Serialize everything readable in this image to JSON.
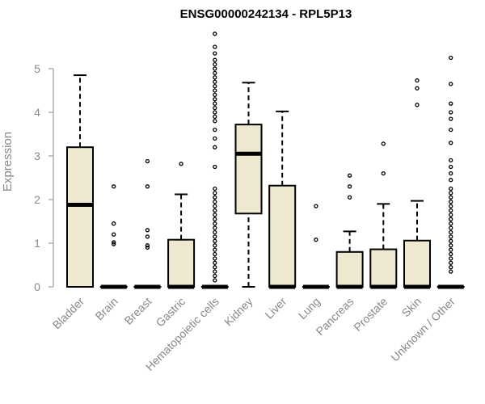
{
  "chart_data": {
    "type": "boxplot",
    "title": "ENSG00000242134 - RPL5P13",
    "ylabel": "Expression",
    "xlabel": "",
    "ylim": [
      0,
      5.8
    ],
    "yticks": [
      0,
      1,
      2,
      3,
      4,
      5
    ],
    "grid": false,
    "box_fill": "#EEE8D0",
    "categories": [
      "Bladder",
      "Brain",
      "Breast",
      "Gastric",
      "Hematopoietic cells",
      "Kidney",
      "Liver",
      "Lung",
      "Pancreas",
      "Prostate",
      "Skin",
      "Unknown / Other"
    ],
    "boxes": [
      {
        "category": "Bladder",
        "whisker_low": 0,
        "q1": 0,
        "median": 1.88,
        "q3": 3.2,
        "whisker_high": 4.85,
        "outliers": []
      },
      {
        "category": "Brain",
        "whisker_low": 0,
        "q1": 0,
        "median": 0,
        "q3": 0,
        "whisker_high": 0,
        "outliers": [
          0.98,
          1.02,
          1.2,
          1.45,
          2.3
        ]
      },
      {
        "category": "Breast",
        "whisker_low": 0,
        "q1": 0,
        "median": 0,
        "q3": 0,
        "whisker_high": 0,
        "outliers": [
          0.9,
          0.95,
          1.15,
          1.3,
          2.3,
          2.88
        ]
      },
      {
        "category": "Gastric",
        "whisker_low": 0,
        "q1": 0,
        "median": 0,
        "q3": 1.08,
        "whisker_high": 2.12,
        "outliers": [
          2.82
        ]
      },
      {
        "category": "Hematopoietic cells",
        "whisker_low": 0,
        "q1": 0,
        "median": 0,
        "q3": 0,
        "whisker_high": 0,
        "outliers": [
          0.15,
          0.25,
          0.35,
          0.45,
          0.55,
          0.65,
          0.75,
          0.85,
          0.95,
          1.05,
          1.15,
          1.25,
          1.35,
          1.45,
          1.55,
          1.65,
          1.75,
          1.85,
          1.95,
          2.05,
          2.15,
          2.25,
          2.75,
          3.2,
          3.4,
          3.6,
          3.8,
          3.9,
          4.0,
          4.1,
          4.2,
          4.3,
          4.4,
          4.5,
          4.6,
          4.7,
          4.8,
          4.9,
          5.0,
          5.1,
          5.2,
          5.35,
          5.5,
          5.8
        ]
      },
      {
        "category": "Kidney",
        "whisker_low": 0,
        "q1": 1.68,
        "median": 3.05,
        "q3": 3.72,
        "whisker_high": 4.68,
        "outliers": []
      },
      {
        "category": "Liver",
        "whisker_low": 0,
        "q1": 0,
        "median": 0,
        "q3": 2.32,
        "whisker_high": 4.02,
        "outliers": []
      },
      {
        "category": "Lung",
        "whisker_low": 0,
        "q1": 0,
        "median": 0,
        "q3": 0,
        "whisker_high": 0,
        "outliers": [
          1.08,
          1.85
        ]
      },
      {
        "category": "Pancreas",
        "whisker_low": 0,
        "q1": 0,
        "median": 0,
        "q3": 0.8,
        "whisker_high": 1.27,
        "outliers": [
          2.05,
          2.3,
          2.55
        ]
      },
      {
        "category": "Prostate",
        "whisker_low": 0,
        "q1": 0,
        "median": 0,
        "q3": 0.86,
        "whisker_high": 1.9,
        "outliers": [
          2.6,
          3.28
        ]
      },
      {
        "category": "Skin",
        "whisker_low": 0,
        "q1": 0,
        "median": 0,
        "q3": 1.06,
        "whisker_high": 1.97,
        "outliers": [
          4.17,
          4.55,
          4.73
        ]
      },
      {
        "category": "Unknown / Other",
        "whisker_low": 0,
        "q1": 0,
        "median": 0,
        "q3": 0,
        "whisker_high": 0,
        "outliers": [
          0.35,
          0.45,
          0.55,
          0.65,
          0.75,
          0.85,
          0.95,
          1.05,
          1.15,
          1.25,
          1.35,
          1.45,
          1.55,
          1.65,
          1.75,
          1.85,
          1.95,
          2.05,
          2.15,
          2.25,
          2.45,
          2.6,
          2.75,
          2.9,
          3.3,
          3.6,
          3.85,
          4.0,
          4.2,
          4.65,
          5.25
        ]
      }
    ]
  }
}
